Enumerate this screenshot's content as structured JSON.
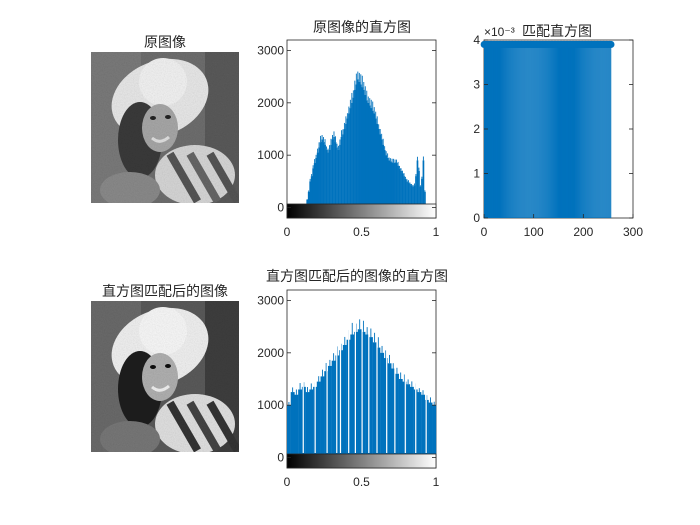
{
  "colors": {
    "bar": "#0072bd",
    "axis": "#262626",
    "background": "#ffffff"
  },
  "panels": {
    "orig_image": {
      "title": "原图像",
      "image_label": "grayscale photo of woman in white sun hat"
    },
    "matched_image": {
      "title": "直方图匹配后的图像",
      "image_label": "histogram-matched grayscale photo of woman in white sun hat"
    }
  },
  "chart_data": [
    {
      "id": "orig_hist",
      "type": "bar",
      "title": "原图像的直方图",
      "xlim": [
        0,
        1
      ],
      "ylim": [
        -200,
        3200
      ],
      "xticks": [
        "0",
        "0.5",
        "1"
      ],
      "yticks": [
        "0",
        "1000",
        "2000",
        "3000"
      ],
      "colorbar": "gray",
      "x": [
        0.12,
        0.13,
        0.14,
        0.15,
        0.16,
        0.17,
        0.18,
        0.19,
        0.2,
        0.21,
        0.22,
        0.23,
        0.24,
        0.25,
        0.26,
        0.27,
        0.28,
        0.29,
        0.3,
        0.31,
        0.32,
        0.33,
        0.34,
        0.35,
        0.36,
        0.37,
        0.38,
        0.39,
        0.4,
        0.41,
        0.42,
        0.43,
        0.44,
        0.45,
        0.46,
        0.47,
        0.48,
        0.49,
        0.5,
        0.51,
        0.52,
        0.53,
        0.54,
        0.55,
        0.56,
        0.57,
        0.58,
        0.59,
        0.6,
        0.61,
        0.62,
        0.63,
        0.64,
        0.65,
        0.66,
        0.67,
        0.68,
        0.69,
        0.7,
        0.71,
        0.72,
        0.73,
        0.74,
        0.75,
        0.76,
        0.77,
        0.78,
        0.79,
        0.8,
        0.81,
        0.82,
        0.83,
        0.84,
        0.85,
        0.86,
        0.87,
        0.88,
        0.89,
        0.9,
        0.91,
        0.92,
        0.93
      ],
      "values": [
        30,
        150,
        300,
        500,
        600,
        750,
        850,
        950,
        1050,
        1150,
        1250,
        1300,
        1250,
        1200,
        1100,
        1050,
        1100,
        1200,
        1300,
        1350,
        1250,
        1150,
        1100,
        1200,
        1350,
        1400,
        1500,
        1600,
        1700,
        1800,
        1900,
        2000,
        2100,
        2250,
        2350,
        2450,
        2400,
        2350,
        2300,
        2250,
        2150,
        2050,
        2000,
        1950,
        1900,
        1850,
        1800,
        1700,
        1600,
        1500,
        1400,
        1300,
        1200,
        1100,
        1000,
        950,
        900,
        880,
        860,
        850,
        860,
        850,
        800,
        750,
        700,
        650,
        600,
        550,
        500,
        480,
        450,
        420,
        400,
        420,
        600,
        900,
        700,
        400,
        550,
        900,
        300,
        50
      ]
    },
    {
      "id": "target_hist",
      "type": "bar",
      "title": "匹配直方图",
      "axis_exponent": "×10⁻³",
      "xlim": [
        0,
        300
      ],
      "ylim": [
        0,
        4
      ],
      "xticks": [
        "0",
        "100",
        "200",
        "300"
      ],
      "yticks": [
        "0",
        "1",
        "2",
        "3",
        "4"
      ],
      "bins": 256,
      "value": 3.9,
      "marker": "filled circles at bar tops"
    },
    {
      "id": "matched_hist",
      "type": "bar",
      "title": "直方图匹配后的图像的直方图",
      "xlim": [
        0,
        1
      ],
      "ylim": [
        -200,
        3200
      ],
      "xticks": [
        "0",
        "0.5",
        "1"
      ],
      "yticks": [
        "0",
        "1000",
        "2000",
        "3000"
      ],
      "colorbar": "gray",
      "x": [
        0.0,
        0.025,
        0.05,
        0.075,
        0.1,
        0.125,
        0.15,
        0.175,
        0.2,
        0.225,
        0.25,
        0.275,
        0.3,
        0.325,
        0.35,
        0.375,
        0.4,
        0.425,
        0.45,
        0.475,
        0.5,
        0.525,
        0.55,
        0.575,
        0.6,
        0.625,
        0.65,
        0.675,
        0.7,
        0.725,
        0.75,
        0.775,
        0.8,
        0.825,
        0.85,
        0.875,
        0.9,
        0.925,
        0.95,
        0.975
      ],
      "values": [
        1000,
        1250,
        1200,
        1300,
        1350,
        1250,
        1300,
        1350,
        1450,
        1550,
        1650,
        1750,
        1850,
        1950,
        2050,
        2150,
        2250,
        2350,
        2400,
        2450,
        2400,
        2350,
        2300,
        2200,
        2100,
        2000,
        1900,
        1800,
        1700,
        1600,
        1500,
        1450,
        1400,
        1350,
        1300,
        1250,
        1200,
        1100,
        1050,
        1000
      ],
      "gaps": [
        0.105,
        0.185,
        0.265,
        0.33,
        0.355,
        0.41,
        0.455,
        0.5,
        0.545,
        0.6,
        0.665,
        0.72,
        0.79,
        0.86,
        0.93
      ]
    }
  ]
}
